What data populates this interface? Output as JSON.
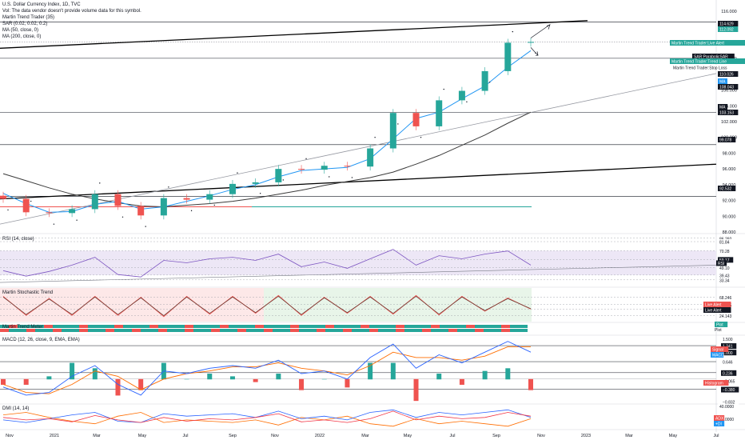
{
  "header": {
    "title": "U.S. Dollar Currency Index, 1D, TVC",
    "vol_note": "Vol: The data vendor doesn't provide volume data for this symbol.",
    "indicators": [
      "Martin Trend Trader (35)",
      "SAR (0.02, 0.02, 0.2)",
      "MA (50, close, 0)",
      "MA (200, close, 0)"
    ]
  },
  "colors": {
    "up": "#26a69a",
    "down": "#ef5350",
    "ma50": "#2196f3",
    "ma200": "#3b3b3b",
    "trendline": "#000000",
    "sar": "#131722",
    "rsi": "#7e57c2",
    "macd": "#2962ff",
    "signal": "#ff6d00",
    "adx": "#f23645",
    "di_plus": "#2962ff",
    "di_minus": "#ff6d00",
    "rsi_band": "#ede7f6",
    "stoch_band": "#e8f5e9",
    "stoch_red": "#fde8e8"
  },
  "price_pane": {
    "axis_ticks": [
      "116.000",
      "112.000",
      "110.000",
      "108.000",
      "106.000",
      "104.000",
      "102.000",
      "100.000",
      "98.000",
      "96.000",
      "94.000",
      "92.000",
      "90.000",
      "88.000"
    ],
    "price_labels": [
      {
        "text": "114.629",
        "style": "dark"
      },
      {
        "text": "112.092",
        "style": "teal"
      },
      {
        "text": "Martin Trend Trader:Live Alert",
        "style": "teal"
      },
      {
        "text": "SAR:ParabolicSAR",
        "style": "dark"
      },
      {
        "text": "Martin Trend Trader:Trend Line",
        "style": "teal"
      },
      {
        "text": "Martin Trend Trader:Stop Loss",
        "style": "plain"
      },
      {
        "text": "110.026",
        "style": "dark"
      },
      {
        "text": "108.043",
        "style": "dark"
      },
      {
        "text": "MA",
        "style": "blue"
      },
      {
        "text": "MA",
        "style": "dark"
      },
      {
        "text": "103.153",
        "style": "dark"
      },
      {
        "text": "99.078",
        "style": "dark"
      },
      {
        "text": "92.532",
        "style": "dark"
      }
    ]
  },
  "rsi_pane": {
    "label": "RSI (14, close)",
    "axis_labels": [
      "86.292",
      "81.84",
      "70.28",
      "59.17",
      "49.10",
      "39.43",
      "33.34"
    ],
    "badge": "RSI"
  },
  "stoch_pane": {
    "label": "Martin Stochastic Trend",
    "axis_labels": [
      "68.246",
      "50.605",
      "40.00",
      "24.143"
    ],
    "badges": [
      "Live Alert",
      "Live Alert"
    ]
  },
  "trend_strip": {
    "label": "Martin Trend Meter",
    "badges": [
      "Plot",
      "Plot"
    ]
  },
  "macd_pane": {
    "label": "MACD (12, 26, close, 9, EMA, EMA)",
    "axis_labels": [
      "1.500",
      "1.241",
      "1.000",
      "0.646",
      "0.236",
      "−0.065",
      "−0.380",
      "−0.832"
    ],
    "badges": [
      "Signal",
      "MACD",
      "Histogram"
    ]
  },
  "dmi_pane": {
    "label": "DMI (14, 14)",
    "axis_labels": [
      "40.0000",
      "20.0000"
    ],
    "badges": [
      "ADX",
      "+DI"
    ]
  },
  "time_axis": [
    "Nov",
    "2021",
    "Mar",
    "May",
    "Jul",
    "Sep",
    "Nov",
    "2022",
    "Mar",
    "May",
    "Jul",
    "Sep",
    "Nov",
    "2023",
    "Mar",
    "May",
    "Jul"
  ],
  "chart_data": {
    "type": "candlestick",
    "symbol": "U.S. Dollar Currency Index",
    "interval": "1D",
    "x": [
      "Nov 2020",
      "Dec 2020",
      "Jan 2021",
      "Feb 2021",
      "Mar 2021",
      "Apr 2021",
      "May 2021",
      "Jun 2021",
      "Jul 2021",
      "Aug 2021",
      "Sep 2021",
      "Oct 2021",
      "Nov 2021",
      "Dec 2021",
      "Jan 2022",
      "Feb 2022",
      "Mar 2022",
      "Apr 2022",
      "May 2022",
      "Jun 2022",
      "Jul 2022",
      "Aug 2022",
      "Sep 2022",
      "Oct 2022"
    ],
    "close": [
      92.2,
      90.5,
      90.4,
      90.9,
      92.8,
      91.3,
      90.1,
      92.3,
      92.1,
      92.8,
      94.1,
      94.3,
      96.0,
      95.9,
      96.4,
      96.3,
      98.6,
      103.1,
      101.4,
      104.7,
      105.9,
      108.4,
      112.0,
      112.1
    ],
    "ma50": [
      92.9,
      91.6,
      90.5,
      90.6,
      91.5,
      91.9,
      90.9,
      91.2,
      91.9,
      92.6,
      93.4,
      94.0,
      95.0,
      95.8,
      96.0,
      96.2,
      97.3,
      99.8,
      102.4,
      103.2,
      104.9,
      106.5,
      108.9,
      111.0
    ],
    "ma200": [
      95.4,
      94.5,
      93.6,
      92.8,
      92.2,
      91.7,
      91.3,
      91.2,
      91.4,
      91.6,
      91.9,
      92.3,
      92.8,
      93.3,
      93.9,
      94.4,
      94.9,
      95.6,
      96.6,
      97.7,
      99.0,
      100.3,
      101.8,
      103.2
    ],
    "rsi": [
      45,
      38,
      44,
      52,
      62,
      40,
      37,
      58,
      55,
      60,
      62,
      58,
      66,
      50,
      56,
      48,
      60,
      72,
      52,
      64,
      60,
      66,
      70,
      52
    ],
    "stoch": [
      70,
      25,
      65,
      25,
      70,
      25,
      68,
      22,
      70,
      28,
      70,
      30,
      72,
      25,
      68,
      30,
      70,
      28,
      72,
      26,
      70,
      35,
      66,
      40
    ],
    "macd": [
      -0.3,
      -0.6,
      -0.5,
      0.1,
      0.5,
      -0.2,
      -0.6,
      0.3,
      0.2,
      0.4,
      0.5,
      0.4,
      0.7,
      0.2,
      0.3,
      0.0,
      0.8,
      1.3,
      0.4,
      0.9,
      0.6,
      1.0,
      1.4,
      1.0
    ],
    "signal": [
      -0.2,
      -0.5,
      -0.55,
      -0.2,
      0.3,
      0.1,
      -0.4,
      0.0,
      0.2,
      0.3,
      0.45,
      0.45,
      0.6,
      0.4,
      0.3,
      0.15,
      0.5,
      1.0,
      0.8,
      0.8,
      0.7,
      0.85,
      1.2,
      1.2
    ],
    "adx": [
      22,
      18,
      20,
      15,
      25,
      18,
      14,
      22,
      16,
      20,
      18,
      22,
      28,
      15,
      18,
      14,
      20,
      32,
      18,
      24,
      20,
      22,
      30,
      24
    ],
    "di_plus": [
      18,
      14,
      20,
      26,
      30,
      16,
      14,
      28,
      24,
      26,
      28,
      22,
      32,
      20,
      24,
      18,
      30,
      34,
      22,
      30,
      26,
      30,
      34,
      22
    ],
    "di_minus": [
      26,
      30,
      22,
      16,
      12,
      24,
      30,
      14,
      18,
      16,
      14,
      18,
      10,
      22,
      18,
      24,
      12,
      8,
      20,
      12,
      16,
      12,
      8,
      20
    ],
    "ylim": [
      88,
      116
    ]
  }
}
